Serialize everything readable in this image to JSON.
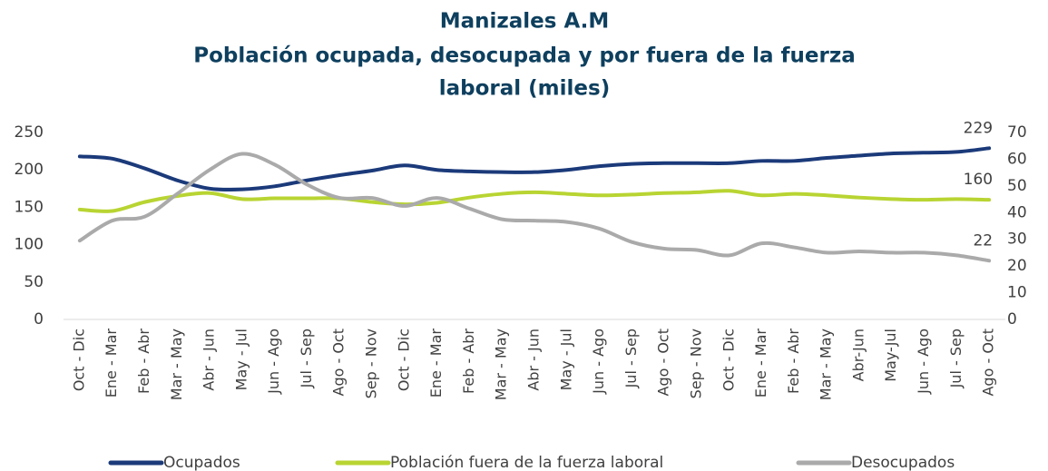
{
  "chart_data": {
    "type": "line",
    "title": [
      "Manizales A.M",
      "Población ocupada, desocupada y por fuera de la fuerza",
      "laboral (miles)"
    ],
    "categories": [
      "Oct - Dic",
      "Ene - Mar",
      "Feb - Abr",
      "Mar - May",
      "Abr - Jun",
      "May - Jul",
      "Jun - Ago",
      "Jul - Sep",
      "Ago - Oct",
      "Sep - Nov",
      "Oct - Dic",
      "Ene - Mar",
      "Feb - Abr",
      "Mar - May",
      "Abr - Jun",
      "May - Jul",
      "Jun - Ago",
      "Jul - Sep",
      "Ago - Oct",
      "Sep - Nov",
      "Oct - Dic",
      "Ene - Mar",
      "Feb - Abr",
      "Mar - May",
      "Abr-Jun",
      "May-Jul",
      "Jun - Ago",
      "Jul - Sep",
      "Ago - Oct"
    ],
    "series": [
      {
        "name": "Ocupados",
        "color": "#1b3a7a",
        "values": [
          218,
          215,
          202,
          186,
          175,
          174,
          178,
          186,
          193,
          199,
          206,
          200,
          198,
          197,
          197,
          200,
          205,
          208,
          209,
          209,
          209,
          212,
          212,
          216,
          219,
          222,
          223,
          224,
          229
        ]
      },
      {
        "name": "Población fuera de la fuerza laboral",
        "color": "#b8d432",
        "values": [
          147,
          145,
          157,
          165,
          169,
          161,
          162,
          162,
          162,
          157,
          154,
          156,
          163,
          168,
          170,
          168,
          166,
          167,
          169,
          170,
          172,
          166,
          168,
          166,
          163,
          161,
          160,
          161,
          160
        ]
      },
      {
        "name": "Desocupados",
        "color": "#aaaaaa",
        "axis": "y2",
        "values": [
          29.5,
          37,
          38.5,
          47,
          56,
          62,
          58,
          50.5,
          45.5,
          45.5,
          42.5,
          45.5,
          41.5,
          37.5,
          37,
          36.5,
          34,
          29,
          26.5,
          26,
          24,
          28.5,
          27,
          25,
          25.5,
          25,
          25,
          24,
          22
        ]
      }
    ],
    "ylim": [
      0,
      250
    ],
    "yticks": [
      0,
      50,
      100,
      150,
      200,
      250
    ],
    "y2lim": [
      0,
      70
    ],
    "y2ticks": [
      0,
      10,
      20,
      30,
      40,
      50,
      60,
      70
    ],
    "legend": "bottom"
  }
}
